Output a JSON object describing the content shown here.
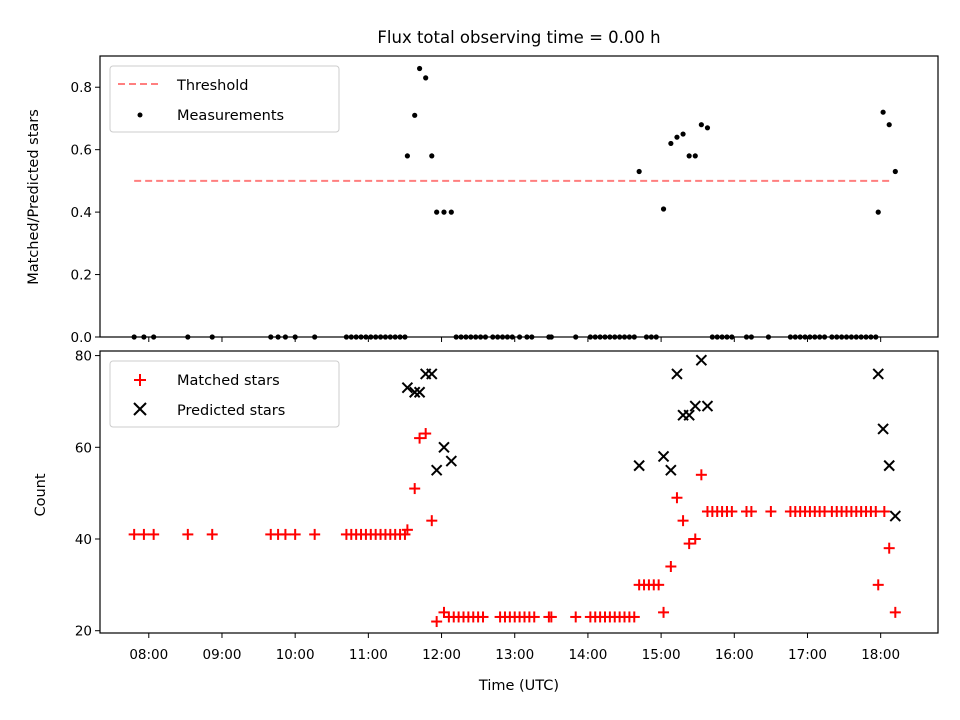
{
  "title": "Flux total observing time = 0.00 h",
  "chart_data": [
    {
      "type": "scatter",
      "ylabel": "Matched/Predicted stars",
      "xlabel": "",
      "xlim": [
        "07:20",
        "18:47"
      ],
      "ylim": [
        0,
        0.9
      ],
      "yticks": [
        0.0,
        0.2,
        0.4,
        0.6,
        0.8
      ],
      "ytick_labels": [
        "0.0",
        "0.2",
        "0.4",
        "0.6",
        "0.8"
      ],
      "xticks": [
        "08:00",
        "09:00",
        "10:00",
        "11:00",
        "12:00",
        "13:00",
        "14:00",
        "15:00",
        "16:00",
        "17:00",
        "18:00"
      ],
      "show_xtick_labels": false,
      "legend_position": "upper-left",
      "threshold": {
        "name": "Threshold",
        "value": 0.5,
        "x_range": [
          "07:48",
          "18:10"
        ],
        "color": "#ff7f7f",
        "style": "dashed"
      },
      "series": [
        {
          "name": "Measurements",
          "color": "#000000",
          "marker": "dot",
          "points": [
            [
              "07:48",
              0
            ],
            [
              "07:56",
              0
            ],
            [
              "08:04",
              0
            ],
            [
              "08:32",
              0
            ],
            [
              "08:52",
              0
            ],
            [
              "09:40",
              0
            ],
            [
              "09:46",
              0
            ],
            [
              "09:52",
              0
            ],
            [
              "10:00",
              0
            ],
            [
              "10:16",
              0
            ],
            [
              "10:42",
              0
            ],
            [
              "10:46",
              0
            ],
            [
              "10:50",
              0
            ],
            [
              "10:54",
              0
            ],
            [
              "10:58",
              0
            ],
            [
              "11:02",
              0
            ],
            [
              "11:06",
              0
            ],
            [
              "11:10",
              0
            ],
            [
              "11:14",
              0
            ],
            [
              "11:18",
              0
            ],
            [
              "11:22",
              0
            ],
            [
              "11:26",
              0
            ],
            [
              "11:30",
              0
            ],
            [
              "11:32",
              0.58
            ],
            [
              "11:38",
              0.71
            ],
            [
              "11:42",
              0.86
            ],
            [
              "11:47",
              0.83
            ],
            [
              "11:52",
              0.58
            ],
            [
              "11:56",
              0.4
            ],
            [
              "12:02",
              0.4
            ],
            [
              "12:08",
              0.4
            ],
            [
              "12:12",
              0
            ],
            [
              "12:16",
              0
            ],
            [
              "12:20",
              0
            ],
            [
              "12:24",
              0
            ],
            [
              "12:28",
              0
            ],
            [
              "12:32",
              0
            ],
            [
              "12:36",
              0
            ],
            [
              "12:42",
              0
            ],
            [
              "12:46",
              0
            ],
            [
              "12:50",
              0
            ],
            [
              "12:54",
              0
            ],
            [
              "12:58",
              0
            ],
            [
              "13:04",
              0
            ],
            [
              "13:10",
              0
            ],
            [
              "13:14",
              0
            ],
            [
              "13:28",
              0
            ],
            [
              "13:30",
              0
            ],
            [
              "13:50",
              0
            ],
            [
              "14:02",
              0
            ],
            [
              "14:06",
              0
            ],
            [
              "14:10",
              0
            ],
            [
              "14:14",
              0
            ],
            [
              "14:18",
              0
            ],
            [
              "14:22",
              0
            ],
            [
              "14:26",
              0
            ],
            [
              "14:30",
              0
            ],
            [
              "14:34",
              0
            ],
            [
              "14:38",
              0
            ],
            [
              "14:42",
              0.53
            ],
            [
              "14:48",
              0
            ],
            [
              "14:52",
              0
            ],
            [
              "14:56",
              0
            ],
            [
              "15:02",
              0.41
            ],
            [
              "15:08",
              0.62
            ],
            [
              "15:13",
              0.64
            ],
            [
              "15:18",
              0.65
            ],
            [
              "15:23",
              0.58
            ],
            [
              "15:28",
              0.58
            ],
            [
              "15:33",
              0.68
            ],
            [
              "15:38",
              0.67
            ],
            [
              "15:42",
              0
            ],
            [
              "15:46",
              0
            ],
            [
              "15:50",
              0
            ],
            [
              "15:54",
              0
            ],
            [
              "15:58",
              0
            ],
            [
              "16:10",
              0
            ],
            [
              "16:14",
              0
            ],
            [
              "16:28",
              0
            ],
            [
              "16:46",
              0
            ],
            [
              "16:50",
              0
            ],
            [
              "16:54",
              0
            ],
            [
              "16:58",
              0
            ],
            [
              "17:02",
              0
            ],
            [
              "17:06",
              0
            ],
            [
              "17:10",
              0
            ],
            [
              "17:14",
              0
            ],
            [
              "17:20",
              0
            ],
            [
              "17:24",
              0
            ],
            [
              "17:28",
              0
            ],
            [
              "17:32",
              0
            ],
            [
              "17:36",
              0
            ],
            [
              "17:40",
              0
            ],
            [
              "17:44",
              0
            ],
            [
              "17:48",
              0
            ],
            [
              "17:52",
              0
            ],
            [
              "17:56",
              0
            ],
            [
              "17:58",
              0.4
            ],
            [
              "18:02",
              0.72
            ],
            [
              "18:07",
              0.68
            ],
            [
              "18:12",
              0.53
            ]
          ]
        }
      ]
    },
    {
      "type": "scatter",
      "ylabel": "Count",
      "xlabel": "Time (UTC)",
      "xlim": [
        "07:20",
        "18:47"
      ],
      "ylim": [
        19.5,
        81
      ],
      "yticks": [
        20,
        40,
        60,
        80
      ],
      "ytick_labels": [
        "20",
        "40",
        "60",
        "80"
      ],
      "xticks": [
        "08:00",
        "09:00",
        "10:00",
        "11:00",
        "12:00",
        "13:00",
        "14:00",
        "15:00",
        "16:00",
        "17:00",
        "18:00"
      ],
      "xtick_labels": [
        "08:00",
        "09:00",
        "10:00",
        "11:00",
        "12:00",
        "13:00",
        "14:00",
        "15:00",
        "16:00",
        "17:00",
        "18:00"
      ],
      "legend_position": "upper-left",
      "series": [
        {
          "name": "Matched stars",
          "color": "#ff0000",
          "marker": "plus",
          "points": [
            [
              "07:48",
              41
            ],
            [
              "07:56",
              41
            ],
            [
              "08:04",
              41
            ],
            [
              "08:32",
              41
            ],
            [
              "08:52",
              41
            ],
            [
              "09:40",
              41
            ],
            [
              "09:46",
              41
            ],
            [
              "09:52",
              41
            ],
            [
              "10:00",
              41
            ],
            [
              "10:16",
              41
            ],
            [
              "10:42",
              41
            ],
            [
              "10:46",
              41
            ],
            [
              "10:50",
              41
            ],
            [
              "10:54",
              41
            ],
            [
              "10:58",
              41
            ],
            [
              "11:02",
              41
            ],
            [
              "11:06",
              41
            ],
            [
              "11:10",
              41
            ],
            [
              "11:14",
              41
            ],
            [
              "11:18",
              41
            ],
            [
              "11:22",
              41
            ],
            [
              "11:26",
              41
            ],
            [
              "11:30",
              41
            ],
            [
              "11:32",
              42
            ],
            [
              "11:38",
              51
            ],
            [
              "11:42",
              62
            ],
            [
              "11:47",
              63
            ],
            [
              "11:52",
              44
            ],
            [
              "11:56",
              22
            ],
            [
              "12:02",
              24
            ],
            [
              "12:06",
              23
            ],
            [
              "12:10",
              23
            ],
            [
              "12:14",
              23
            ],
            [
              "12:18",
              23
            ],
            [
              "12:22",
              23
            ],
            [
              "12:26",
              23
            ],
            [
              "12:30",
              23
            ],
            [
              "12:34",
              23
            ],
            [
              "12:48",
              23
            ],
            [
              "12:52",
              23
            ],
            [
              "12:56",
              23
            ],
            [
              "13:00",
              23
            ],
            [
              "13:04",
              23
            ],
            [
              "13:08",
              23
            ],
            [
              "13:12",
              23
            ],
            [
              "13:16",
              23
            ],
            [
              "13:28",
              23
            ],
            [
              "13:30",
              23
            ],
            [
              "13:50",
              23
            ],
            [
              "14:02",
              23
            ],
            [
              "14:06",
              23
            ],
            [
              "14:10",
              23
            ],
            [
              "14:14",
              23
            ],
            [
              "14:18",
              23
            ],
            [
              "14:22",
              23
            ],
            [
              "14:26",
              23
            ],
            [
              "14:30",
              23
            ],
            [
              "14:34",
              23
            ],
            [
              "14:38",
              23
            ],
            [
              "14:42",
              30
            ],
            [
              "14:46",
              30
            ],
            [
              "14:50",
              30
            ],
            [
              "14:54",
              30
            ],
            [
              "14:58",
              30
            ],
            [
              "15:02",
              24
            ],
            [
              "15:08",
              34
            ],
            [
              "15:13",
              49
            ],
            [
              "15:18",
              44
            ],
            [
              "15:23",
              39
            ],
            [
              "15:28",
              40
            ],
            [
              "15:33",
              54
            ],
            [
              "15:38",
              46
            ],
            [
              "15:42",
              46
            ],
            [
              "15:46",
              46
            ],
            [
              "15:50",
              46
            ],
            [
              "15:54",
              46
            ],
            [
              "15:58",
              46
            ],
            [
              "16:10",
              46
            ],
            [
              "16:14",
              46
            ],
            [
              "16:30",
              46
            ],
            [
              "16:46",
              46
            ],
            [
              "16:50",
              46
            ],
            [
              "16:54",
              46
            ],
            [
              "16:58",
              46
            ],
            [
              "17:02",
              46
            ],
            [
              "17:06",
              46
            ],
            [
              "17:10",
              46
            ],
            [
              "17:14",
              46
            ],
            [
              "17:20",
              46
            ],
            [
              "17:24",
              46
            ],
            [
              "17:28",
              46
            ],
            [
              "17:32",
              46
            ],
            [
              "17:36",
              46
            ],
            [
              "17:40",
              46
            ],
            [
              "17:44",
              46
            ],
            [
              "17:48",
              46
            ],
            [
              "17:52",
              46
            ],
            [
              "17:56",
              46
            ],
            [
              "18:03",
              46
            ],
            [
              "17:58",
              30
            ],
            [
              "18:07",
              38
            ],
            [
              "18:12",
              24
            ]
          ]
        },
        {
          "name": "Predicted stars",
          "color": "#000000",
          "marker": "x",
          "points": [
            [
              "11:32",
              73
            ],
            [
              "11:38",
              72
            ],
            [
              "11:42",
              72
            ],
            [
              "11:47",
              76
            ],
            [
              "11:52",
              76
            ],
            [
              "11:56",
              55
            ],
            [
              "12:02",
              60
            ],
            [
              "12:08",
              57
            ],
            [
              "14:42",
              56
            ],
            [
              "15:02",
              58
            ],
            [
              "15:08",
              55
            ],
            [
              "15:13",
              76
            ],
            [
              "15:18",
              67
            ],
            [
              "15:23",
              67
            ],
            [
              "15:28",
              69
            ],
            [
              "15:33",
              79
            ],
            [
              "15:38",
              69
            ],
            [
              "17:58",
              76
            ],
            [
              "18:02",
              64
            ],
            [
              "18:07",
              56
            ],
            [
              "18:12",
              45
            ]
          ]
        }
      ]
    }
  ]
}
